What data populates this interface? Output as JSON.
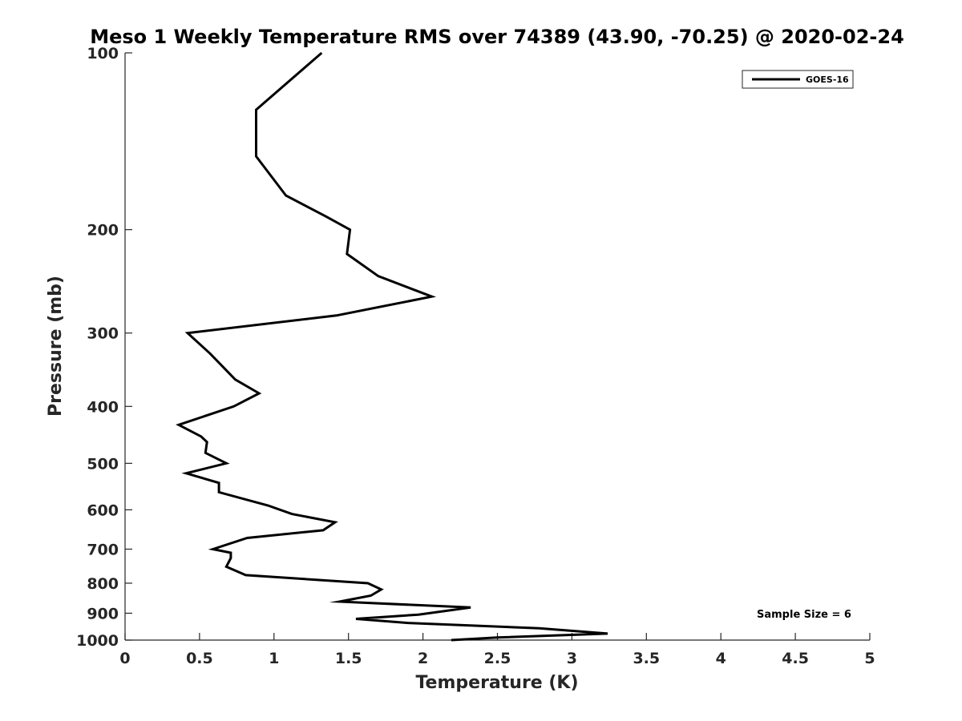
{
  "chart_data": {
    "type": "line",
    "title": "Meso 1 Weekly Temperature RMS over 74389 (43.90, -70.25) @ 2020-02-24",
    "xlabel": "Temperature (K)",
    "ylabel": "Pressure (mb)",
    "xlim": [
      0,
      5
    ],
    "ylim": [
      100,
      1000
    ],
    "y_scale": "log",
    "y_inverted": true,
    "xticks": [
      0,
      0.5,
      1,
      1.5,
      2,
      2.5,
      3,
      3.5,
      4,
      4.5,
      5
    ],
    "xtick_labels": [
      "0",
      "0.5",
      "1",
      "1.5",
      "2",
      "2.5",
      "3",
      "3.5",
      "4",
      "4.5",
      "5"
    ],
    "yticks": [
      100,
      200,
      300,
      400,
      500,
      600,
      700,
      800,
      900,
      1000
    ],
    "ytick_labels": [
      "100",
      "200",
      "300",
      "400",
      "500",
      "600",
      "700",
      "800",
      "900",
      "1000"
    ],
    "grid": false,
    "legend_position": "top-right",
    "legend": [
      "GOES-16"
    ],
    "annotation": "Sample Size = 6",
    "series": [
      {
        "name": "GOES-16",
        "color": "#000000",
        "points": [
          [
            1.32,
            100
          ],
          [
            0.88,
            125
          ],
          [
            0.88,
            150
          ],
          [
            1.08,
            175
          ],
          [
            1.35,
            190
          ],
          [
            1.51,
            200
          ],
          [
            1.49,
            220
          ],
          [
            1.7,
            240
          ],
          [
            2.06,
            260
          ],
          [
            1.42,
            280
          ],
          [
            0.42,
            300
          ],
          [
            0.57,
            325
          ],
          [
            0.74,
            360
          ],
          [
            0.9,
            380
          ],
          [
            0.73,
            400
          ],
          [
            0.36,
            430
          ],
          [
            0.51,
            450
          ],
          [
            0.55,
            460
          ],
          [
            0.54,
            480
          ],
          [
            0.68,
            500
          ],
          [
            0.41,
            520
          ],
          [
            0.63,
            540
          ],
          [
            0.63,
            560
          ],
          [
            0.96,
            590
          ],
          [
            1.12,
            610
          ],
          [
            1.41,
            630
          ],
          [
            1.33,
            650
          ],
          [
            0.82,
            670
          ],
          [
            0.59,
            700
          ],
          [
            0.71,
            710
          ],
          [
            0.71,
            725
          ],
          [
            0.68,
            750
          ],
          [
            0.81,
            775
          ],
          [
            1.63,
            800
          ],
          [
            1.72,
            820
          ],
          [
            1.65,
            840
          ],
          [
            1.44,
            860
          ],
          [
            2.32,
            880
          ],
          [
            1.97,
            905
          ],
          [
            1.55,
            920
          ],
          [
            1.9,
            935
          ],
          [
            2.78,
            955
          ],
          [
            3.24,
            975
          ],
          [
            2.5,
            990
          ],
          [
            2.19,
            1000
          ]
        ]
      }
    ]
  }
}
